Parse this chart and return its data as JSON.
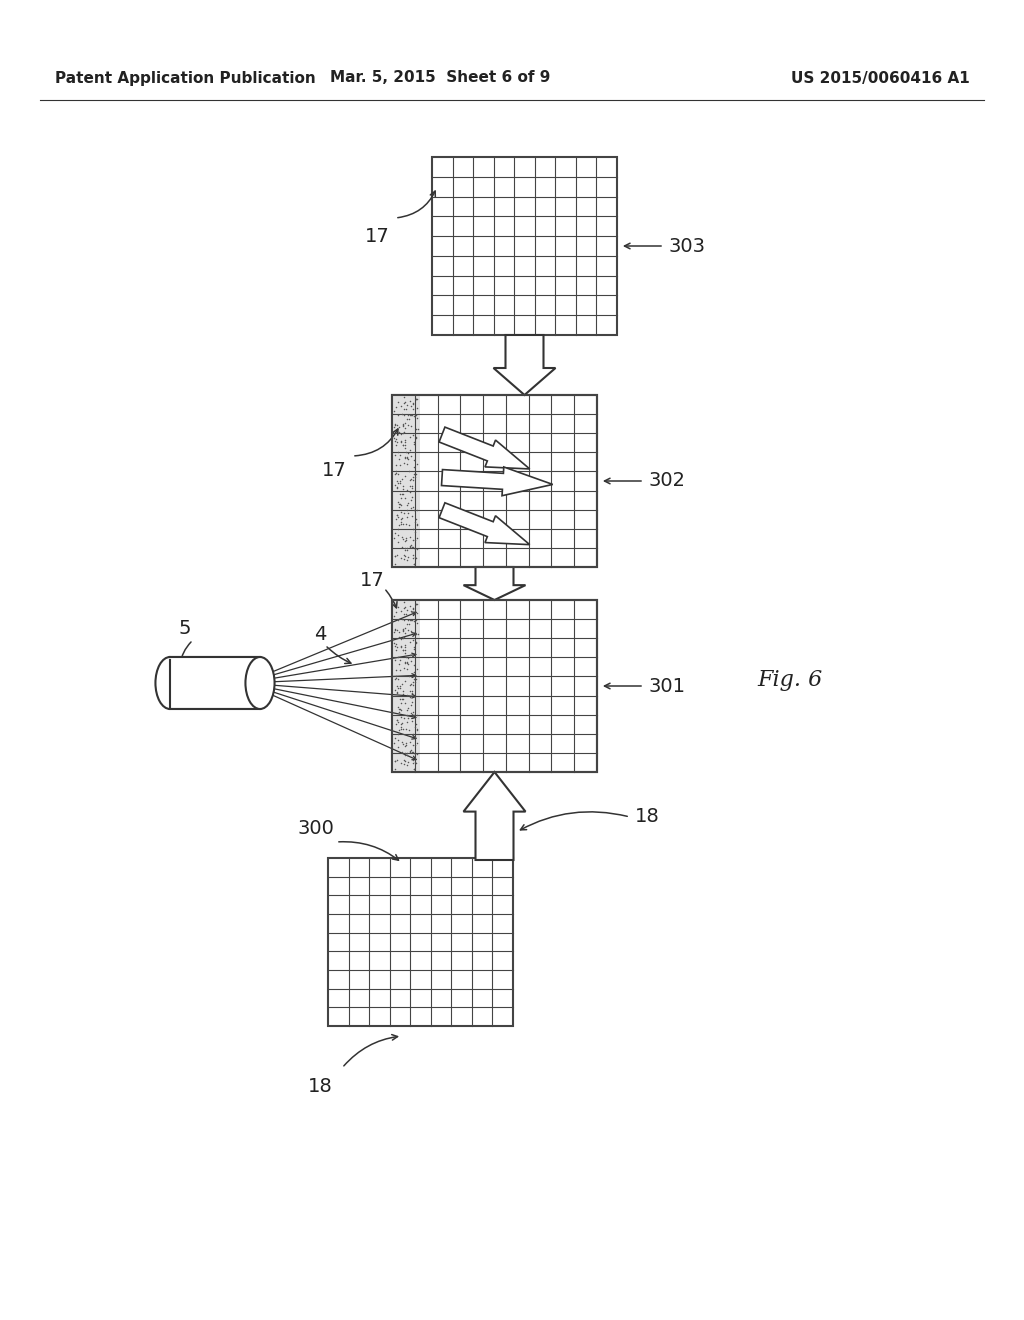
{
  "bg_color": "#ffffff",
  "text_color": "#222222",
  "header_left": "Patent Application Publication",
  "header_mid": "Mar. 5, 2015  Sheet 6 of 9",
  "header_right": "US 2015/0060416 A1",
  "fig_label": "Fig. 6",
  "panel_line_color": "#444444",
  "arrow_fill": "#ffffff",
  "arrow_edge": "#333333",
  "stipple_color": "#aaaaaa",
  "beam_line_color": "#333333"
}
